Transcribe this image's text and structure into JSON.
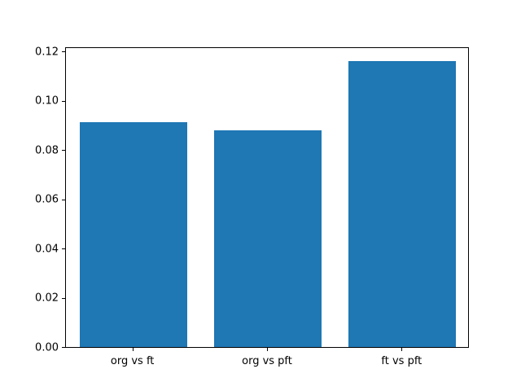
{
  "chart_data": {
    "type": "bar",
    "title": "",
    "xlabel": "",
    "ylabel": "",
    "categories": [
      "org vs ft",
      "org vs pft",
      "ft vs pft"
    ],
    "values": [
      0.0915,
      0.088,
      0.1163
    ],
    "ylim": [
      0,
      0.1218
    ],
    "yticks": [
      0,
      0.02,
      0.04,
      0.06,
      0.08,
      0.1,
      0.12
    ],
    "ytick_labels": [
      "0.00",
      "0.02",
      "0.04",
      "0.06",
      "0.08",
      "0.10",
      "0.12"
    ],
    "bar_color": "#1f77b4",
    "bar_width_fraction": 0.8,
    "grid": false,
    "legend": null
  }
}
